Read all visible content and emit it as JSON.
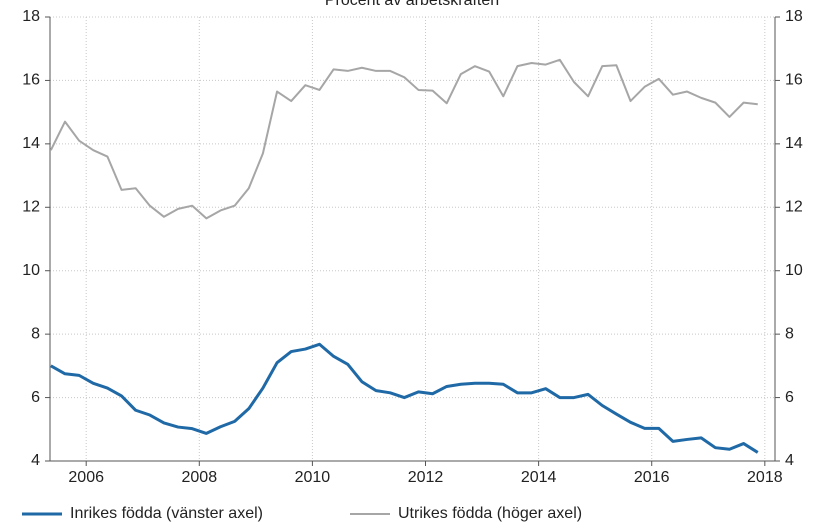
{
  "chart_data": {
    "type": "line",
    "title": "Procent av arbetskraften",
    "x": [
      2005.375,
      2005.625,
      2005.875,
      2006.125,
      2006.375,
      2006.625,
      2006.875,
      2007.125,
      2007.375,
      2007.625,
      2007.875,
      2008.125,
      2008.375,
      2008.625,
      2008.875,
      2009.125,
      2009.375,
      2009.625,
      2009.875,
      2010.125,
      2010.375,
      2010.625,
      2010.875,
      2011.125,
      2011.375,
      2011.625,
      2011.875,
      2012.125,
      2012.375,
      2012.625,
      2012.875,
      2013.125,
      2013.375,
      2013.625,
      2013.875,
      2014.125,
      2014.375,
      2014.625,
      2014.875,
      2015.125,
      2015.375,
      2015.625,
      2015.875,
      2016.125,
      2016.375,
      2016.625,
      2016.875,
      2017.125,
      2017.375,
      2017.625,
      2017.875
    ],
    "series": [
      {
        "name": "Inrikes födda (vänster axel)",
        "color": "#1f69a6",
        "values": [
          7.0,
          6.75,
          6.7,
          6.45,
          6.3,
          6.05,
          5.6,
          5.45,
          5.2,
          5.07,
          5.02,
          4.87,
          5.08,
          5.25,
          5.65,
          6.3,
          7.1,
          7.45,
          7.53,
          7.68,
          7.3,
          7.05,
          6.5,
          6.22,
          6.15,
          6.0,
          6.18,
          6.12,
          6.35,
          6.42,
          6.45,
          6.45,
          6.42,
          6.15,
          6.15,
          6.28,
          6.0,
          6.0,
          6.1,
          5.75,
          5.48,
          5.22,
          5.03,
          5.03,
          4.62,
          4.68,
          4.73,
          4.42,
          4.37,
          4.55,
          4.27
        ]
      },
      {
        "name": "Utrikes födda (höger axel)",
        "color": "#a6a6a6",
        "axis": "y2",
        "values": [
          13.8,
          14.7,
          14.1,
          13.8,
          13.6,
          12.55,
          12.6,
          12.05,
          11.7,
          11.95,
          12.05,
          11.65,
          11.9,
          12.05,
          12.6,
          13.7,
          15.65,
          15.35,
          15.85,
          15.7,
          16.35,
          16.3,
          16.4,
          16.3,
          16.3,
          16.1,
          15.7,
          15.68,
          15.28,
          16.2,
          16.45,
          16.28,
          15.5,
          16.45,
          16.55,
          16.5,
          16.65,
          15.95,
          15.5,
          16.45,
          16.48,
          15.35,
          15.8,
          16.05,
          15.55,
          15.65,
          15.45,
          15.3,
          14.85,
          15.3,
          15.25
        ]
      }
    ],
    "xlim": [
      2005.36,
      2018.18
    ],
    "xticks": [
      2006,
      2008,
      2010,
      2012,
      2014,
      2016,
      2018
    ],
    "ylim": [
      4,
      18
    ],
    "yticks": [
      4,
      6,
      8,
      10,
      12,
      14,
      16,
      18
    ],
    "y2lim": [
      4,
      18
    ],
    "y2ticks": [
      4,
      6,
      8,
      10,
      12,
      14,
      16,
      18
    ],
    "grid": true,
    "legend": "bottom"
  }
}
